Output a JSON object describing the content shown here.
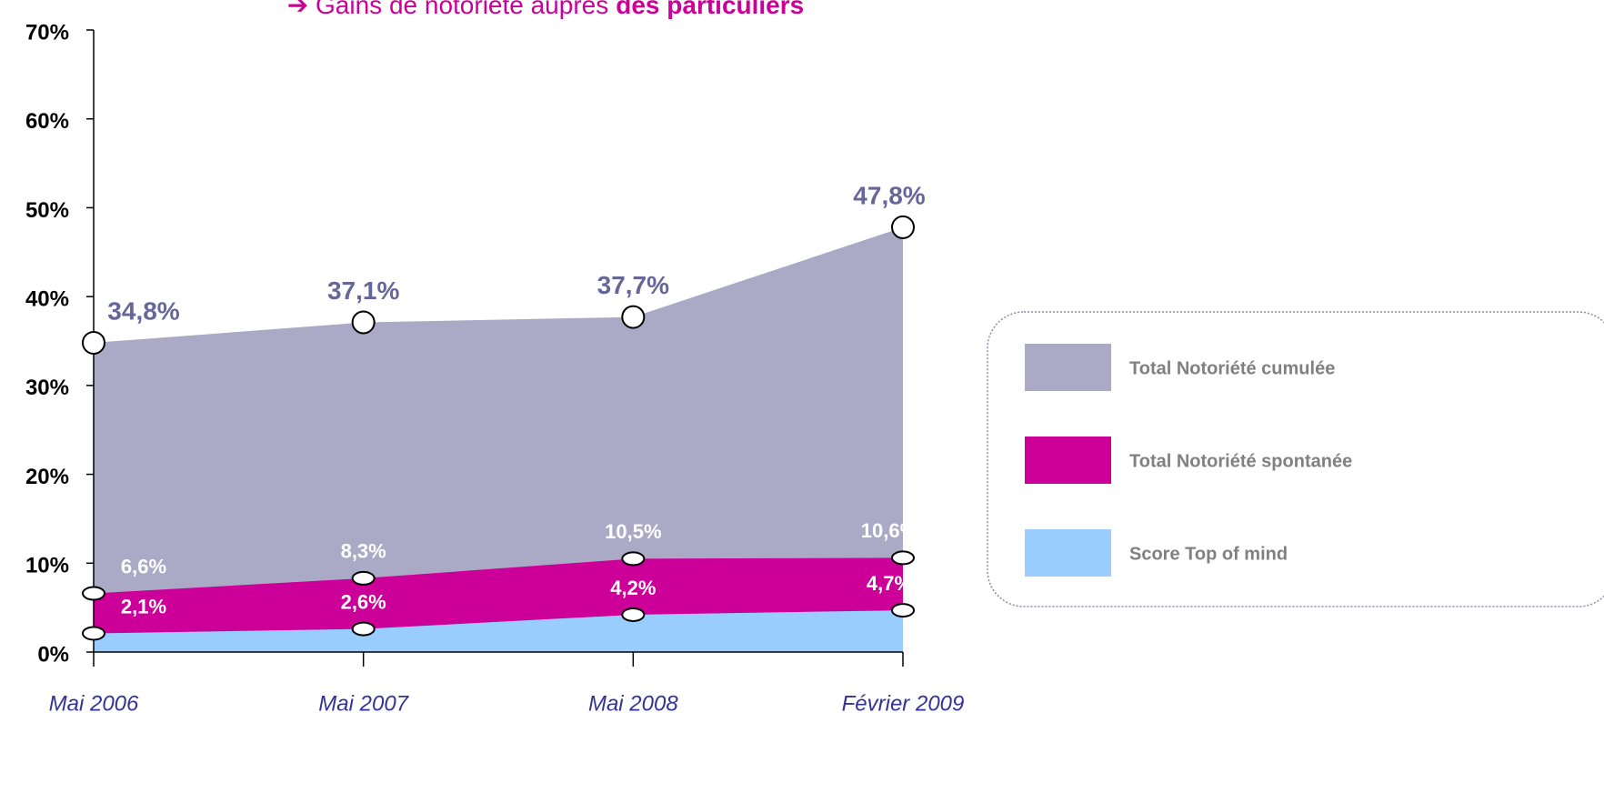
{
  "chart_data": {
    "type": "area",
    "title_parts": [
      "➔ Gains de notoriété auprès",
      "des particuliers"
    ],
    "categories": [
      "Mai 2006",
      "Mai 2007",
      "Mai 2008",
      "Février 2009"
    ],
    "series": [
      {
        "name": "Total Notoriété cumulée",
        "color": "#aaaac6",
        "label_color": "#666699",
        "values": [
          34.8,
          37.1,
          37.7,
          47.8
        ],
        "value_labels": [
          "34,8%",
          "37,1%",
          "37,7%",
          "47,8%"
        ]
      },
      {
        "name": "Total Notoriété spontanée",
        "color": "#cc0099",
        "label_color": "#ffffff",
        "values": [
          6.6,
          8.3,
          10.5,
          10.6
        ],
        "value_labels": [
          "6,6%",
          "8,3%",
          "10,5%",
          "10,6%"
        ]
      },
      {
        "name": "Score Top of  mind",
        "color": "#99ccff",
        "label_color": "#ffffff",
        "values": [
          2.1,
          2.6,
          4.2,
          4.7
        ],
        "value_labels": [
          "2,1%",
          "2,6%",
          "4,2%",
          "4,7%"
        ]
      }
    ],
    "ylim": [
      0,
      70
    ],
    "yticks": [
      {
        "value": 0,
        "label": "0%"
      },
      {
        "value": 10,
        "label": "10%"
      },
      {
        "value": 20,
        "label": "20%"
      },
      {
        "value": 30,
        "label": "30%"
      },
      {
        "value": 40,
        "label": "40%"
      },
      {
        "value": 50,
        "label": "50%"
      },
      {
        "value": 60,
        "label": "60%"
      },
      {
        "value": 70,
        "label": "70%"
      }
    ],
    "legend": "right"
  }
}
